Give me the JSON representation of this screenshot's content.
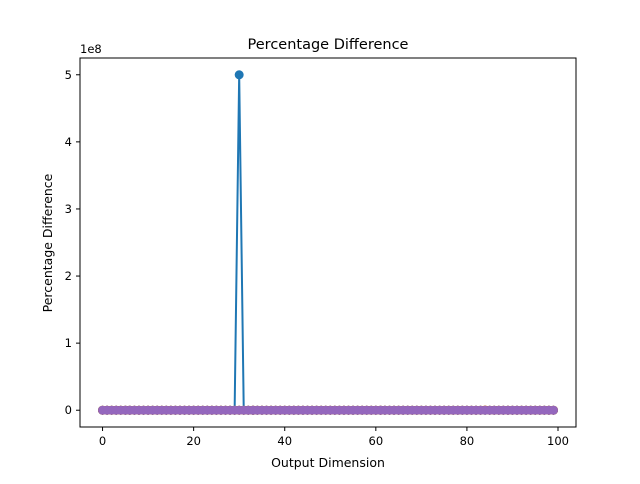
{
  "chart_data": {
    "type": "line",
    "title": "Percentage Difference",
    "xlabel": "Output Dimension",
    "ylabel": "Percentage Difference",
    "y_offset_label": "1e8",
    "xlim": [
      -4.95,
      103.95
    ],
    "ylim": [
      -0.25,
      5.25
    ],
    "y_unit_multiplier": 100000000,
    "x_ticks": [
      0,
      20,
      40,
      60,
      80,
      100
    ],
    "y_ticks": [
      0,
      1,
      2,
      3,
      4,
      5
    ],
    "x_tick_labels": [
      "0",
      "20",
      "40",
      "60",
      "80",
      "100"
    ],
    "y_tick_labels": [
      "0",
      "1",
      "2",
      "3",
      "4",
      "5"
    ],
    "markers": true,
    "grid": false,
    "legend": "none",
    "series": [
      {
        "color": "#1f77b4",
        "x_start": 0,
        "x_end": 99,
        "baseline": 0,
        "spikes": [
          {
            "x": 30,
            "y": 5
          }
        ]
      },
      {
        "color": "#ff7f0e",
        "x_start": 0,
        "x_end": 99,
        "baseline": 0,
        "spikes": [
          {
            "x": 84,
            "y": 0.004
          }
        ]
      },
      {
        "color": "#2ca02c",
        "x_start": 0,
        "x_end": 99,
        "baseline": 0,
        "spikes": []
      },
      {
        "color": "#d62728",
        "x_start": 0,
        "x_end": 99,
        "baseline": 0,
        "spikes": []
      },
      {
        "color": "#9467bd",
        "x_start": 0,
        "x_end": 99,
        "baseline": 0,
        "spikes": []
      }
    ]
  }
}
